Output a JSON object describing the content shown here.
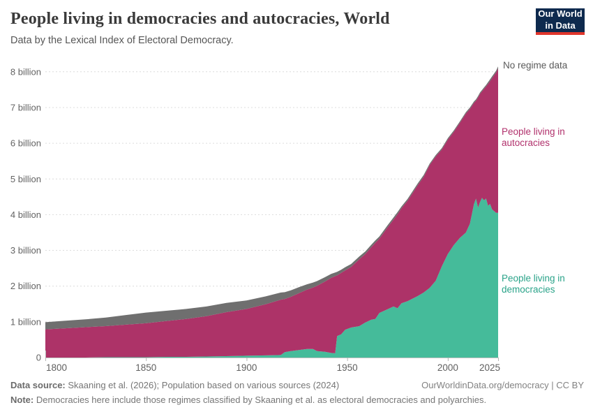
{
  "header": {
    "title": "People living in democracies and autocracies, World",
    "subtitle": "Data by the Lexical Index of Electoral Democracy.",
    "logo_line1": "Our World",
    "logo_line2": "in Data",
    "logo_bg": "#0e2a4e",
    "logo_accent": "#e0362c"
  },
  "chart_data": {
    "type": "area",
    "stacked": true,
    "title": "People living in democracies and autocracies, World",
    "xlabel": "",
    "ylabel": "",
    "xlim": [
      1800,
      2025
    ],
    "ylim": [
      0,
      8.2
    ],
    "grid": "horizontal-dashed",
    "x": [
      1800,
      1810,
      1820,
      1830,
      1840,
      1850,
      1860,
      1870,
      1880,
      1890,
      1900,
      1910,
      1917,
      1919,
      1922,
      1926,
      1930,
      1933,
      1935,
      1939,
      1942,
      1944,
      1945,
      1947,
      1949,
      1952,
      1956,
      1959,
      1962,
      1964,
      1966,
      1970,
      1973,
      1975,
      1977,
      1980,
      1985,
      1988,
      1991,
      1994,
      1997,
      2000,
      2003,
      2006,
      2009,
      2011,
      2013,
      2014,
      2015,
      2016,
      2017,
      2018,
      2019,
      2020,
      2021,
      2022,
      2023,
      2024,
      2025
    ],
    "series": [
      {
        "name": "People living in democracies",
        "color": "#45bb9a",
        "values": [
          0.0,
          0.0,
          0.0,
          0.01,
          0.01,
          0.01,
          0.02,
          0.02,
          0.03,
          0.04,
          0.05,
          0.06,
          0.07,
          0.15,
          0.18,
          0.21,
          0.24,
          0.24,
          0.18,
          0.16,
          0.13,
          0.12,
          0.6,
          0.65,
          0.78,
          0.84,
          0.88,
          0.98,
          1.06,
          1.08,
          1.25,
          1.35,
          1.43,
          1.38,
          1.52,
          1.58,
          1.72,
          1.82,
          1.95,
          2.15,
          2.55,
          2.9,
          3.15,
          3.35,
          3.5,
          3.75,
          4.3,
          4.45,
          4.2,
          4.35,
          4.47,
          4.4,
          4.45,
          4.25,
          4.3,
          4.15,
          4.1,
          4.05,
          4.05
        ]
      },
      {
        "name": "People living in autocracies",
        "color": "#ad3368",
        "values": [
          0.79,
          0.82,
          0.85,
          0.87,
          0.91,
          0.95,
          1.0,
          1.06,
          1.13,
          1.23,
          1.31,
          1.44,
          1.55,
          1.49,
          1.52,
          1.59,
          1.66,
          1.72,
          1.83,
          1.97,
          2.1,
          2.16,
          1.7,
          1.72,
          1.66,
          1.7,
          1.87,
          1.92,
          2.03,
          2.13,
          2.08,
          2.29,
          2.43,
          2.63,
          2.66,
          2.81,
          3.1,
          3.24,
          3.44,
          3.48,
          3.27,
          3.2,
          3.17,
          3.22,
          3.33,
          3.21,
          2.83,
          2.74,
          3.08,
          3.03,
          2.98,
          3.12,
          3.14,
          3.41,
          3.44,
          3.67,
          3.8,
          3.93,
          4.04
        ]
      },
      {
        "name": "No regime data",
        "color": "#6f6f6f",
        "values": [
          0.2,
          0.21,
          0.22,
          0.24,
          0.27,
          0.3,
          0.29,
          0.28,
          0.27,
          0.26,
          0.24,
          0.22,
          0.2,
          0.19,
          0.18,
          0.17,
          0.15,
          0.14,
          0.13,
          0.12,
          0.11,
          0.1,
          0.1,
          0.09,
          0.09,
          0.08,
          0.08,
          0.07,
          0.07,
          0.07,
          0.06,
          0.06,
          0.06,
          0.06,
          0.05,
          0.05,
          0.05,
          0.05,
          0.04,
          0.04,
          0.04,
          0.04,
          0.04,
          0.04,
          0.04,
          0.04,
          0.04,
          0.04,
          0.04,
          0.04,
          0.04,
          0.04,
          0.04,
          0.05,
          0.05,
          0.05,
          0.05,
          0.05,
          0.06
        ]
      }
    ],
    "x_ticks": [
      {
        "v": 1800,
        "label": "1800"
      },
      {
        "v": 1850,
        "label": "1850"
      },
      {
        "v": 1900,
        "label": "1900"
      },
      {
        "v": 1950,
        "label": "1950"
      },
      {
        "v": 2000,
        "label": "2000"
      },
      {
        "v": 2025,
        "label": "2025"
      }
    ],
    "y_ticks": [
      {
        "v": 0,
        "label": "0"
      },
      {
        "v": 1,
        "label": "1 billion"
      },
      {
        "v": 2,
        "label": "2 billion"
      },
      {
        "v": 3,
        "label": "3 billion"
      },
      {
        "v": 4,
        "label": "4 billion"
      },
      {
        "v": 5,
        "label": "5 billion"
      },
      {
        "v": 6,
        "label": "6 billion"
      },
      {
        "v": 7,
        "label": "7 billion"
      },
      {
        "v": 8,
        "label": "8 billion"
      }
    ],
    "annotations": [
      {
        "text": "No regime data",
        "color": "#5a5a5a"
      },
      {
        "text": "People living in autocracies",
        "color": "#b1316c"
      },
      {
        "text": "People living in democracies",
        "color": "#2aa389"
      }
    ],
    "legend_position": "right-annotations"
  },
  "footer": {
    "datasource_label": "Data source:",
    "datasource_text": " Skaaning et al. (2026); Population based on various sources (2024)",
    "rights": "OurWorldinData.org/democracy | CC BY",
    "note_label": "Note:",
    "note_text": " Democracies here include those regimes classified by Skaaning et al. as electoral democracies and polyarchies."
  }
}
